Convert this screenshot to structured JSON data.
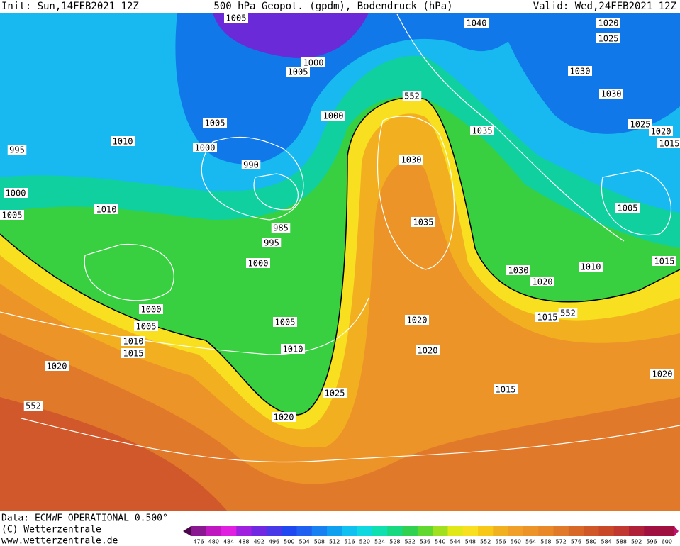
{
  "header": {
    "init": "Init: Sun,14FEB2021 12Z",
    "title": "500 hPa Geopot. (gpdm), Bodendruck (hPa)",
    "valid": "Valid: Wed,24FEB2021 12Z"
  },
  "footer": {
    "data": "Data: ECMWF OPERATIONAL 0.500°",
    "copyright": "(C) Wetterzentrale",
    "url": "www.wetterzentrale.de"
  },
  "colorbar": {
    "labels": [
      476,
      480,
      484,
      488,
      492,
      496,
      500,
      504,
      508,
      512,
      516,
      520,
      524,
      528,
      532,
      536,
      540,
      544,
      548,
      552,
      556,
      560,
      564,
      568,
      572,
      576,
      580,
      584,
      588,
      592,
      596,
      600
    ]
  },
  "isobar_labels": [
    "1005",
    "1040",
    "1020",
    "1025",
    "1000",
    "1005",
    "1030",
    "1030",
    "552",
    "1000",
    "1005",
    "1035",
    "1025",
    "1020",
    "1015",
    "1010",
    "995",
    "1000",
    "990",
    "1030",
    "1000",
    "1010",
    "1005",
    "1005",
    "985",
    "1035",
    "995",
    "1000",
    "1030",
    "1010",
    "1015",
    "1020",
    "1000",
    "1005",
    "1005",
    "1015",
    "552",
    "1020",
    "1010",
    "1015",
    "1010",
    "1020",
    "1020",
    "1020",
    "1015",
    "1025",
    "552",
    "1020"
  ]
}
